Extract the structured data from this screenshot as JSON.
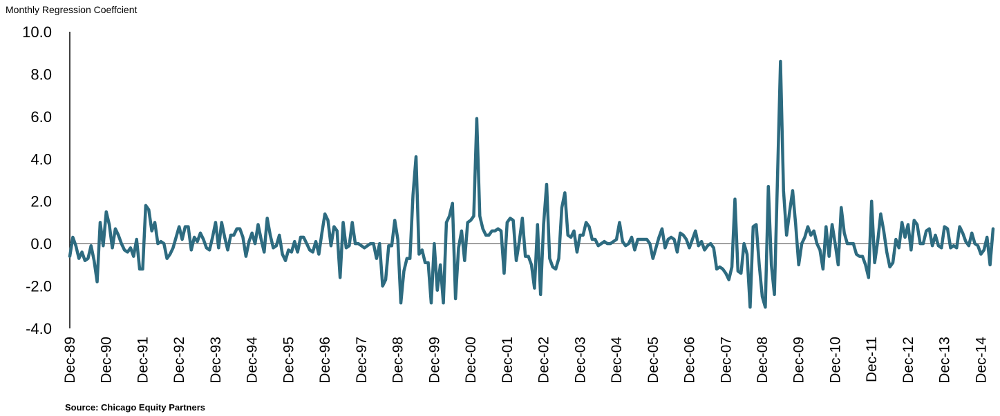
{
  "chart_data": {
    "type": "line",
    "title": "",
    "ylabel": "Monthly Regression Coeffcient",
    "xlabel": "",
    "source": "Source: Chicago Equity Partners",
    "ylim": [
      -4.0,
      10.0
    ],
    "yticks": [
      "10.0",
      "8.0",
      "6.0",
      "4.0",
      "2.0",
      "0.0",
      "-2.0",
      "-4.0"
    ],
    "ytick_values": [
      10,
      8,
      6,
      4,
      2,
      0,
      -2,
      -4
    ],
    "xticks": [
      "Dec-89",
      "Dec-90",
      "Dec-91",
      "Dec-92",
      "Dec-93",
      "Dec-94",
      "Dec-95",
      "Dec-96",
      "Dec-97",
      "Dec-98",
      "Dec-99",
      "Dec-00",
      "Dec-01",
      "Dec-02",
      "Dec-03",
      "Dec-04",
      "Dec-05",
      "Dec-06",
      "Dec-07",
      "Dec-08",
      "Dec-09",
      "Dec-10",
      "Dec-11",
      "Dec-12",
      "Dec-13",
      "Dec-14"
    ],
    "x_start": "Dec-89",
    "x_frequency": "monthly",
    "series": [
      {
        "values": [
          -0.6,
          0.3,
          -0.1,
          -0.7,
          -0.4,
          -0.8,
          -0.7,
          -0.1,
          -0.8,
          -1.8,
          1.0,
          -0.1,
          1.5,
          0.9,
          -0.2,
          0.7,
          0.4,
          0.0,
          -0.3,
          -0.4,
          -0.2,
          -0.6,
          0.2,
          -1.2,
          -1.2,
          1.8,
          1.6,
          0.6,
          1.0,
          0.0,
          0.1,
          0.0,
          -0.7,
          -0.5,
          -0.2,
          0.3,
          0.8,
          0.2,
          0.8,
          0.8,
          -0.3,
          0.3,
          0.1,
          0.5,
          0.2,
          -0.2,
          -0.3,
          0.3,
          1.0,
          -0.2,
          1.0,
          0.3,
          -0.3,
          0.4,
          0.4,
          0.7,
          0.7,
          0.3,
          -0.6,
          0.1,
          0.5,
          0.0,
          0.9,
          0.2,
          -0.4,
          1.2,
          0.4,
          -0.2,
          -0.1,
          0.4,
          -0.5,
          -0.8,
          -0.3,
          -0.4,
          0.1,
          -0.4,
          0.3,
          0.3,
          0.0,
          -0.3,
          -0.4,
          0.1,
          -0.5,
          0.5,
          1.4,
          1.1,
          -0.1,
          0.8,
          0.6,
          -1.6,
          1.0,
          -0.2,
          -0.1,
          1.0,
          0.0,
          0.0,
          -0.1,
          -0.2,
          -0.1,
          0.0,
          0.0,
          -0.7,
          0.0,
          -2.0,
          -1.7,
          -0.1,
          -0.1,
          1.1,
          0.2,
          -2.8,
          -1.3,
          -0.7,
          -0.7,
          2.3,
          4.1,
          -0.5,
          -0.3,
          -0.9,
          -0.9,
          -2.8,
          0.0,
          -2.2,
          -1.0,
          -2.8,
          1.0,
          1.3,
          1.9,
          -2.6,
          -0.2,
          0.6,
          -0.8,
          1.0,
          1.1,
          1.3,
          5.9,
          1.3,
          0.7,
          0.4,
          0.4,
          0.6,
          0.6,
          0.7,
          0.6,
          -1.4,
          1.0,
          1.2,
          1.1,
          -0.8,
          0.1,
          1.2,
          -0.6,
          -0.6,
          -1.0,
          -2.1,
          0.9,
          -2.4,
          0.9,
          2.8,
          -0.7,
          -1.1,
          -1.2,
          -0.7,
          1.7,
          2.4,
          0.4,
          0.3,
          0.6,
          -0.4,
          0.4,
          0.4,
          1.0,
          0.8,
          0.2,
          0.2,
          -0.1,
          0.0,
          0.1,
          0.0,
          0.0,
          0.1,
          0.2,
          1.0,
          0.1,
          -0.1,
          0.0,
          0.3,
          -0.3,
          0.2,
          0.2,
          0.2,
          0.2,
          0.0,
          -0.7,
          -0.2,
          0.3,
          0.7,
          -0.2,
          0.2,
          0.3,
          0.2,
          -0.4,
          0.5,
          0.4,
          0.2,
          -0.2,
          0.2,
          0.6,
          -0.1,
          0.1,
          -0.3,
          -0.1,
          0.0,
          -0.2,
          -1.2,
          -1.1,
          -1.2,
          -1.4,
          -1.7,
          -1.1,
          2.1,
          -1.3,
          -1.4,
          0.0,
          -0.5,
          -3.0,
          0.8,
          0.9,
          -1.0,
          -2.5,
          -3.0,
          2.7,
          -1.0,
          -2.4,
          3.0,
          8.6,
          2.5,
          0.4,
          1.5,
          2.5,
          0.9,
          -1.0,
          0.0,
          0.3,
          0.8,
          0.4,
          0.6,
          0.0,
          -0.3,
          -1.2,
          0.8,
          -0.6,
          0.9,
          0.0,
          -1.0,
          1.7,
          0.5,
          0.0,
          0.0,
          0.0,
          -0.5,
          -0.6,
          -0.6,
          -1.0,
          -1.6,
          2.0,
          -0.9,
          0.1,
          1.4,
          0.6,
          -0.4,
          -1.1,
          -0.9,
          0.2,
          -0.2,
          1.0,
          0.3,
          0.9,
          -0.3,
          1.1,
          0.9,
          0.0,
          0.0,
          0.6,
          0.7,
          -0.1,
          0.4,
          -0.1,
          -0.2,
          0.8,
          0.7,
          -0.2,
          -0.1,
          -0.2,
          0.8,
          0.5,
          0.1,
          -0.1,
          0.5,
          0.0,
          -0.1,
          -0.5,
          -0.3,
          0.3,
          -1.0,
          0.7
        ]
      }
    ],
    "colors": {
      "line": "#2d6b80",
      "zero_line": "#808080",
      "axis": "#000000"
    }
  }
}
